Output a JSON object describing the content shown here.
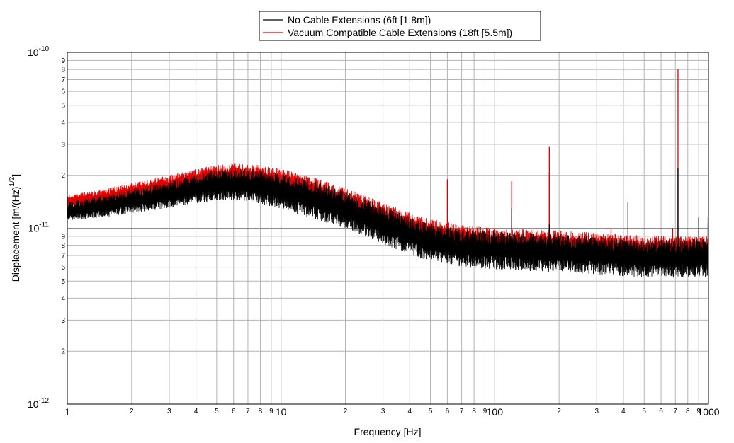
{
  "chart_data": {
    "type": "line",
    "xlabel": "Frequency [Hz]",
    "ylabel_base": "Displacement [m/(Hz)",
    "ylabel_sup": "1/2",
    "ylabel_tail": "]",
    "xscale": "log",
    "yscale": "log",
    "xlim": [
      1,
      1000
    ],
    "ylim": [
      1e-12,
      1e-10
    ],
    "grid": true,
    "legend_position": "top-center",
    "x_major_ticks": [
      {
        "value": 1,
        "label": "1"
      },
      {
        "value": 10,
        "label": "10"
      },
      {
        "value": 100,
        "label": "100"
      },
      {
        "value": 1000,
        "label": "1000"
      }
    ],
    "x_minor_labels": [
      "2",
      "3",
      "4",
      "5",
      "6",
      "7",
      "8",
      "9"
    ],
    "y_major_ticks": [
      {
        "value": 1e-12,
        "base": "10",
        "exp": "-12"
      },
      {
        "value": 1e-11,
        "base": "10",
        "exp": "-11"
      },
      {
        "value": 1e-10,
        "base": "10",
        "exp": "-10"
      }
    ],
    "y_minor_labels": [
      "2",
      "3",
      "4",
      "5",
      "6",
      "7",
      "8",
      "9"
    ],
    "series": [
      {
        "name": "No Cable Extensions (6ft [1.8m])",
        "color": "#000000",
        "x": [
          1,
          1.5,
          2,
          3,
          4,
          5,
          6,
          7,
          8,
          10,
          15,
          20,
          30,
          40,
          50,
          70,
          100,
          150,
          200,
          300,
          400,
          500,
          700,
          1000
        ],
        "y": [
          1.25e-11,
          1.33e-11,
          1.42e-11,
          1.55e-11,
          1.67e-11,
          1.75e-11,
          1.77e-11,
          1.76e-11,
          1.72e-11,
          1.62e-11,
          1.42e-11,
          1.27e-11,
          1.04e-11,
          9.1e-12,
          8.3e-12,
          7.7e-12,
          7.5e-12,
          7.3e-12,
          7.2e-12,
          7e-12,
          6.8e-12,
          6.7e-12,
          6.7e-12,
          6.8e-12
        ],
        "peaks": [
          {
            "x": 120,
            "y": 1.3e-11
          },
          {
            "x": 180,
            "y": 1.05e-11
          },
          {
            "x": 420,
            "y": 1.4e-11
          },
          {
            "x": 720,
            "y": 2.2e-11
          },
          {
            "x": 900,
            "y": 1.15e-11
          },
          {
            "x": 1000,
            "y": 1.15e-11
          }
        ]
      },
      {
        "name": "Vacuum Compatible Cable Extensions (18ft [5.5m])",
        "color": "#e00000",
        "x": [
          1,
          1.5,
          2,
          3,
          4,
          5,
          6,
          7,
          8,
          10,
          15,
          20,
          30,
          40,
          50,
          70,
          100,
          150,
          200,
          300,
          400,
          500,
          700,
          1000
        ],
        "y": [
          1.4e-11,
          1.5e-11,
          1.6e-11,
          1.75e-11,
          1.88e-11,
          1.96e-11,
          1.98e-11,
          1.97e-11,
          1.93e-11,
          1.82e-11,
          1.58e-11,
          1.4e-11,
          1.15e-11,
          1.01e-11,
          9.3e-12,
          8.6e-12,
          8.3e-12,
          8.1e-12,
          8e-12,
          7.8e-12,
          7.6e-12,
          7.5e-12,
          7.4e-12,
          7.4e-12
        ],
        "peaks": [
          {
            "x": 60,
            "y": 1.9e-11
          },
          {
            "x": 120,
            "y": 1.85e-11
          },
          {
            "x": 180,
            "y": 2.9e-11
          },
          {
            "x": 180,
            "y": 2.05e-11
          },
          {
            "x": 350,
            "y": 1e-11
          },
          {
            "x": 680,
            "y": 1e-11
          },
          {
            "x": 720,
            "y": 8e-11
          },
          {
            "x": 1000,
            "y": 1.05e-11
          }
        ]
      }
    ]
  }
}
